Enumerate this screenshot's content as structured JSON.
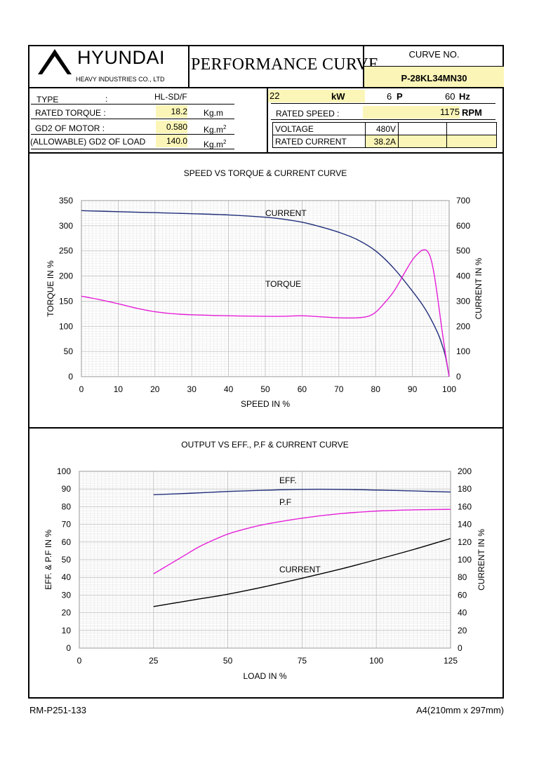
{
  "header": {
    "company": "HYUNDAI",
    "company_sub": "HEAVY INDUSTRIES CO., LTD",
    "title": "PERFORMANCE CURVE",
    "curve_no_label": "CURVE NO.",
    "curve_no": "P-28KL34MN30"
  },
  "specs": {
    "type_label": "TYPE",
    "type_colon": ":",
    "type_value": "HL-SD/F",
    "rated_torque_label": "RATED TORQUE :",
    "rated_torque_value": "18.2",
    "rated_torque_unit": "Kg.m",
    "gd2_motor_label": "GD2 OF MOTOR :",
    "gd2_motor_value": "0.580",
    "gd2_motor_unit": "Kg.m",
    "gd2_load_label": "(ALLOWABLE) GD2 OF LOAD",
    "gd2_load_value": "140.0",
    "gd2_load_unit": "Kg.m",
    "unit_sup": "2",
    "power_value": "22",
    "power_unit": "kW",
    "poles_value": "6",
    "poles_unit": "P",
    "freq_value": "60",
    "freq_unit": "Hz",
    "rated_speed_label": "RATED   SPEED :",
    "rated_speed_value": "1175",
    "rated_speed_unit": "RPM",
    "voltage_label": "VOLTAGE",
    "voltage_value": "480V",
    "rated_current_label": "RATED CURRENT",
    "rated_current_value": "38.2A"
  },
  "footer": {
    "doc_no": "RM-P251-133",
    "paper": "A4(210mm x 297mm)"
  },
  "chart_data": [
    {
      "type": "line",
      "title": "SPEED VS TORQUE & CURRENT CURVE",
      "xlabel": "SPEED IN %",
      "ylabel": "TORQUE IN %",
      "y2label": "CURRENT IN %",
      "xlim": [
        0,
        100
      ],
      "ylim": [
        0,
        350
      ],
      "y2lim": [
        0,
        700
      ],
      "xticks": [
        0,
        10,
        20,
        30,
        40,
        50,
        60,
        70,
        80,
        90,
        100
      ],
      "yticks": [
        0,
        50,
        100,
        150,
        200,
        250,
        300,
        350
      ],
      "y2ticks": [
        0,
        100,
        200,
        300,
        400,
        500,
        600,
        700
      ],
      "grid": true,
      "series": [
        {
          "name": "CURRENT",
          "axis": "right",
          "color": "#1f2d7a",
          "x": [
            0,
            10,
            20,
            30,
            40,
            50,
            55,
            60,
            65,
            70,
            75,
            80,
            85,
            90,
            93,
            95,
            97,
            98,
            99,
            100
          ],
          "y": [
            660,
            656,
            652,
            648,
            643,
            634,
            626,
            614,
            596,
            574,
            545,
            500,
            430,
            340,
            280,
            230,
            170,
            130,
            80,
            0
          ]
        },
        {
          "name": "TORQUE",
          "axis": "left",
          "color": "#e51fd8",
          "x": [
            0,
            5,
            10,
            15,
            20,
            25,
            30,
            40,
            50,
            55,
            60,
            65,
            70,
            75,
            78,
            80,
            82,
            85,
            88,
            90,
            92,
            93,
            94,
            95,
            96,
            97,
            98,
            99,
            100
          ],
          "y": [
            160,
            153,
            145,
            136,
            129,
            125,
            123,
            121,
            120,
            120,
            121,
            119,
            117,
            117,
            120,
            128,
            143,
            170,
            208,
            232,
            248,
            252,
            250,
            235,
            200,
            150,
            95,
            45,
            0
          ]
        }
      ]
    },
    {
      "type": "line",
      "title": "OUTPUT VS EFF., P.F & CURRENT CURVE",
      "xlabel": "LOAD IN %",
      "ylabel": "EFF. & P.F IN %",
      "y2label": "CURRENT IN %",
      "xlim": [
        0,
        125
      ],
      "ylim": [
        0,
        100
      ],
      "y2lim": [
        0,
        200
      ],
      "xticks": [
        0,
        25,
        50,
        75,
        100,
        125
      ],
      "yticks": [
        0,
        10,
        20,
        30,
        40,
        50,
        60,
        70,
        80,
        90,
        100
      ],
      "y2ticks": [
        0,
        20,
        40,
        60,
        80,
        100,
        120,
        140,
        160,
        180,
        200
      ],
      "grid": true,
      "series": [
        {
          "name": "EFF.",
          "axis": "left",
          "color": "#1f2d7a",
          "x": [
            25,
            37.5,
            50,
            62.5,
            75,
            87.5,
            100,
            112.5,
            125
          ],
          "y": [
            86.8,
            87.6,
            88.6,
            89.3,
            89.8,
            89.8,
            89.4,
            88.9,
            88.3
          ]
        },
        {
          "name": "P.F",
          "axis": "left",
          "color": "#e51fd8",
          "x": [
            25,
            30,
            35,
            40,
            45,
            50,
            55,
            62.5,
            75,
            87.5,
            100,
            112.5,
            125
          ],
          "y": [
            42,
            47,
            52,
            57,
            61,
            64.5,
            67,
            70,
            73.5,
            76,
            77.5,
            78.2,
            78.5
          ]
        },
        {
          "name": "CURRENT",
          "axis": "right",
          "color": "#000000",
          "x": [
            25,
            37.5,
            50,
            62.5,
            75,
            87.5,
            100,
            112.5,
            125
          ],
          "y": [
            47,
            54,
            61,
            69.5,
            79,
            89,
            100,
            111.5,
            124
          ]
        }
      ]
    }
  ]
}
